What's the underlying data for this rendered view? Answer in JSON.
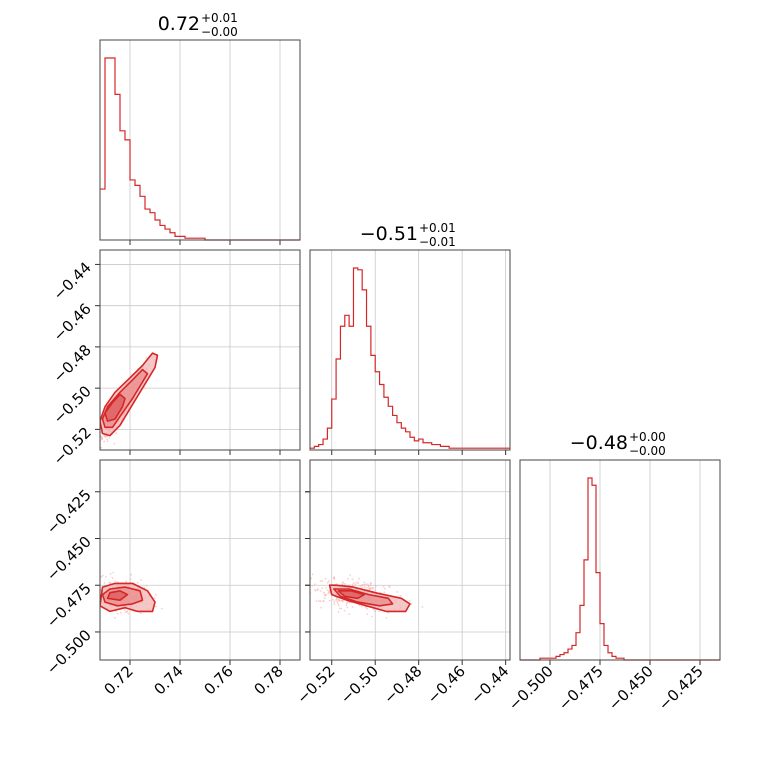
{
  "figure": {
    "type": "corner plot"
  },
  "colors": {
    "accent": "#d62728",
    "fill_light": "#f2b6b6",
    "fill_mid": "#e98c8c",
    "fill_dark": "#dc5a5a",
    "scatter": "#f4a5a5"
  },
  "chart_data": [
    {
      "type": "histogram",
      "panel": "param-1",
      "title": {
        "main": "0.72",
        "upper": "+0.01",
        "lower": "−0.00"
      },
      "median": 0.72,
      "err_plus": 0.01,
      "err_minus": 0.0,
      "xlim": [
        0.708,
        0.788
      ],
      "bin_width": 0.002,
      "bin_start": 0.708,
      "counts": [
        28,
        100,
        100,
        80,
        60,
        55,
        33,
        30,
        24,
        17,
        15,
        11,
        8,
        6,
        4,
        2,
        2,
        1,
        1,
        1,
        1,
        0,
        0,
        0,
        0,
        0,
        0,
        0,
        0,
        0,
        0,
        0,
        0,
        0,
        0,
        0,
        0,
        0,
        0,
        0
      ]
    },
    {
      "type": "histogram",
      "panel": "param-2",
      "title": {
        "main": "−0.51",
        "upper": "+0.01",
        "lower": "−0.01"
      },
      "median": -0.51,
      "err_plus": 0.01,
      "err_minus": 0.01,
      "xlim": [
        -0.53,
        -0.438
      ],
      "bin_width": 0.002,
      "bin_start": -0.53,
      "counts": [
        1,
        2,
        3,
        6,
        12,
        28,
        50,
        68,
        74,
        68,
        100,
        99,
        88,
        68,
        52,
        43,
        36,
        29,
        24,
        19,
        15,
        12,
        10,
        7,
        5,
        6,
        4,
        4,
        3,
        3,
        2,
        2,
        1,
        1,
        1,
        1,
        1,
        1,
        1,
        1,
        1,
        1,
        1,
        1,
        1,
        1
      ]
    },
    {
      "type": "histogram",
      "panel": "param-3",
      "title": {
        "main": "−0.48",
        "upper": "+0.00",
        "lower": "−0.00"
      },
      "median": -0.48,
      "err_plus": 0.0,
      "err_minus": 0.0,
      "xlim": [
        -0.515,
        -0.415
      ],
      "bin_width": 0.002,
      "bin_start": -0.515,
      "counts": [
        0,
        0,
        0,
        0,
        0,
        1,
        1,
        1,
        1,
        2,
        3,
        4,
        6,
        8,
        15,
        30,
        55,
        100,
        96,
        48,
        20,
        8,
        4,
        2,
        1,
        1,
        0,
        0,
        0,
        0,
        0,
        0,
        0,
        0,
        0,
        0,
        0,
        0,
        0,
        0,
        0,
        0,
        0,
        0,
        0,
        0,
        0,
        0,
        0,
        0
      ]
    },
    {
      "type": "scatter",
      "panel": "param-1-vs-param-2",
      "xlim": [
        0.708,
        0.788
      ],
      "ylim": [
        -0.53,
        -0.433
      ],
      "xticks": [
        0.72,
        0.74,
        0.76,
        0.78
      ],
      "yticks": [
        -0.44,
        -0.46,
        -0.48,
        -0.5,
        -0.52
      ],
      "ytick_labels": [
        "−0.44",
        "−0.46",
        "−0.48",
        "−0.50",
        "−0.52"
      ],
      "center": [
        0.714,
        -0.513
      ],
      "contours": [
        [
          [
            0.709,
            -0.522
          ],
          [
            0.712,
            -0.523
          ],
          [
            0.716,
            -0.518
          ],
          [
            0.721,
            -0.508
          ],
          [
            0.726,
            -0.498
          ],
          [
            0.73,
            -0.49
          ],
          [
            0.731,
            -0.484
          ],
          [
            0.729,
            -0.483
          ],
          [
            0.725,
            -0.489
          ],
          [
            0.72,
            -0.495
          ],
          [
            0.714,
            -0.502
          ],
          [
            0.71,
            -0.509
          ],
          [
            0.708,
            -0.516
          ]
        ],
        [
          [
            0.71,
            -0.519
          ],
          [
            0.713,
            -0.519
          ],
          [
            0.717,
            -0.512
          ],
          [
            0.721,
            -0.505
          ],
          [
            0.725,
            -0.497
          ],
          [
            0.727,
            -0.493
          ],
          [
            0.725,
            -0.491
          ],
          [
            0.721,
            -0.496
          ],
          [
            0.716,
            -0.502
          ],
          [
            0.711,
            -0.509
          ],
          [
            0.709,
            -0.515
          ]
        ],
        [
          [
            0.711,
            -0.516
          ],
          [
            0.714,
            -0.515
          ],
          [
            0.717,
            -0.509
          ],
          [
            0.718,
            -0.505
          ],
          [
            0.716,
            -0.503
          ],
          [
            0.713,
            -0.507
          ],
          [
            0.71,
            -0.512
          ]
        ]
      ]
    },
    {
      "type": "scatter",
      "panel": "param-1-vs-param-3",
      "xlim": [
        0.708,
        0.788
      ],
      "ylim": [
        -0.515,
        -0.408
      ],
      "xticks": [
        0.72,
        0.74,
        0.76,
        0.78
      ],
      "xtick_labels": [
        "0.72",
        "0.74",
        "0.76",
        "0.78"
      ],
      "yticks": [
        -0.425,
        -0.45,
        -0.475,
        -0.5
      ],
      "ytick_labels": [
        "−0.425",
        "−0.450",
        "−0.475",
        "−0.500"
      ],
      "center": [
        0.714,
        -0.48
      ],
      "contours": [
        [
          [
            0.708,
            -0.486
          ],
          [
            0.712,
            -0.489
          ],
          [
            0.718,
            -0.487
          ],
          [
            0.723,
            -0.489
          ],
          [
            0.729,
            -0.489
          ],
          [
            0.73,
            -0.484
          ],
          [
            0.727,
            -0.478
          ],
          [
            0.721,
            -0.474
          ],
          [
            0.714,
            -0.474
          ],
          [
            0.709,
            -0.476
          ]
        ],
        [
          [
            0.71,
            -0.484
          ],
          [
            0.715,
            -0.486
          ],
          [
            0.721,
            -0.485
          ],
          [
            0.725,
            -0.483
          ],
          [
            0.724,
            -0.478
          ],
          [
            0.718,
            -0.476
          ],
          [
            0.712,
            -0.477
          ],
          [
            0.709,
            -0.48
          ]
        ],
        [
          [
            0.711,
            -0.482
          ],
          [
            0.716,
            -0.483
          ],
          [
            0.719,
            -0.48
          ],
          [
            0.716,
            -0.478
          ],
          [
            0.712,
            -0.479
          ]
        ]
      ]
    },
    {
      "type": "scatter",
      "panel": "param-2-vs-param-3",
      "xlim": [
        -0.53,
        -0.438
      ],
      "ylim": [
        -0.515,
        -0.408
      ],
      "xticks": [
        -0.52,
        -0.5,
        -0.48,
        -0.46,
        -0.44
      ],
      "xtick_labels": [
        "−0.52",
        "−0.50",
        "−0.48",
        "−0.46",
        "−0.44"
      ],
      "center": [
        -0.512,
        -0.48
      ],
      "contours": [
        [
          [
            -0.521,
            -0.475
          ],
          [
            -0.518,
            -0.475
          ],
          [
            -0.51,
            -0.476
          ],
          [
            -0.5,
            -0.479
          ],
          [
            -0.488,
            -0.482
          ],
          [
            -0.484,
            -0.485
          ],
          [
            -0.486,
            -0.489
          ],
          [
            -0.495,
            -0.489
          ],
          [
            -0.504,
            -0.486
          ],
          [
            -0.513,
            -0.483
          ],
          [
            -0.52,
            -0.48
          ]
        ],
        [
          [
            -0.519,
            -0.477
          ],
          [
            -0.512,
            -0.477
          ],
          [
            -0.503,
            -0.48
          ],
          [
            -0.494,
            -0.482
          ],
          [
            -0.492,
            -0.485
          ],
          [
            -0.498,
            -0.486
          ],
          [
            -0.508,
            -0.484
          ],
          [
            -0.516,
            -0.481
          ]
        ],
        [
          [
            -0.517,
            -0.478
          ],
          [
            -0.511,
            -0.478
          ],
          [
            -0.505,
            -0.48
          ],
          [
            -0.508,
            -0.482
          ],
          [
            -0.514,
            -0.481
          ]
        ]
      ]
    },
    {
      "type": "axis",
      "panel": "param-3-xaxis",
      "xticks": [
        -0.5,
        -0.475,
        -0.45,
        -0.425
      ],
      "xtick_labels": [
        "−0.500",
        "−0.475",
        "−0.450",
        "−0.425"
      ]
    }
  ]
}
